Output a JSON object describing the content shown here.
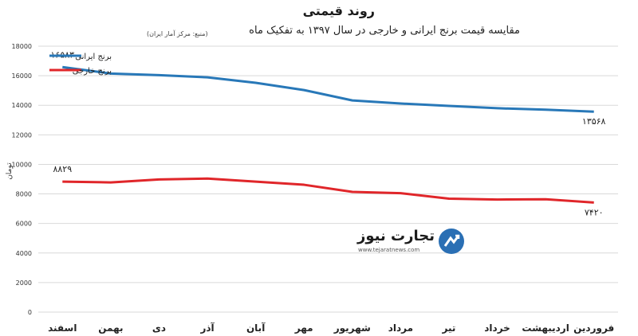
{
  "header": {
    "title": "روند قیمتی",
    "subtitle": "مقایسه قیمت برنج ایرانی و خارجی در سال ۱۳۹۷ به تفکیک ماه",
    "source": "(منبع: مرکز آمار ایران)"
  },
  "logo": {
    "name": "تجارت نیوز",
    "url": "www.tejaratnews.com"
  },
  "colors": {
    "iranian": "#2878b8",
    "foreign": "#e0262a",
    "grid": "#d9d9d9"
  },
  "chart_data": {
    "type": "line",
    "categories": [
      "فروردین",
      "اردیبهشت",
      "خرداد",
      "تیر",
      "مرداد",
      "شهریور",
      "مهر",
      "آبان",
      "آذر",
      "دی",
      "بهمن",
      "اسفند"
    ],
    "series": [
      {
        "name": "برنج ایرانی",
        "values": [
          13568,
          13700,
          13800,
          13960,
          14120,
          14330,
          15030,
          15520,
          15890,
          16040,
          16150,
          16583
        ]
      },
      {
        "name": "برنج خارجی",
        "values": [
          7420,
          7640,
          7620,
          7680,
          8050,
          8140,
          8620,
          8830,
          9040,
          8980,
          8780,
          8829
        ]
      }
    ],
    "annotations": [
      {
        "series": 0,
        "index": 0,
        "text": "۱۳۵۶۸"
      },
      {
        "series": 0,
        "index": 11,
        "text": "۱۶۵۸۳"
      },
      {
        "series": 1,
        "index": 0,
        "text": "۷۴۲۰"
      },
      {
        "series": 1,
        "index": 11,
        "text": "۸۸۲۹"
      }
    ],
    "ylabel": "تومان",
    "ylim": [
      0,
      18000
    ],
    "yticks": [
      0,
      2000,
      4000,
      6000,
      8000,
      10000,
      12000,
      14000,
      16000,
      18000
    ],
    "ytick_labels": [
      "0",
      "2000",
      "4000",
      "6000",
      "8000",
      "10000",
      "12000",
      "14000",
      "16000",
      "18000"
    ],
    "grid": true,
    "legend": "top-left"
  }
}
